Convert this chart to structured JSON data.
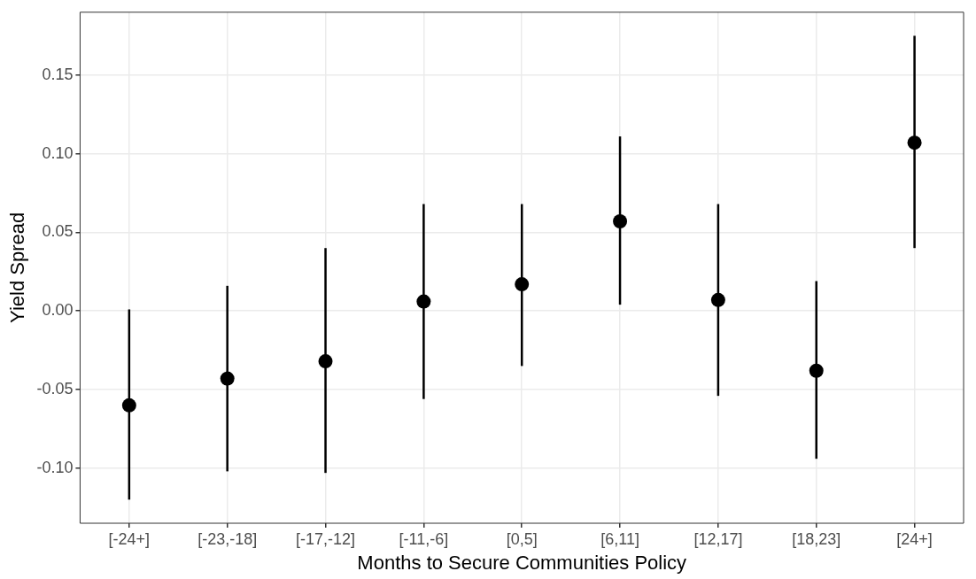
{
  "chart_data": {
    "type": "scatter",
    "xlabel": "Months to Secure Communities Policy",
    "ylabel": "Yield Spread",
    "categories": [
      "[-24+]",
      "[-23,-18]",
      "[-17,-12]",
      "[-11,-6]",
      "[0,5]",
      "[6,11]",
      "[12,17]",
      "[18,23]",
      "[24+]"
    ],
    "series": [
      {
        "color": "#000000",
        "values": [
          -0.06,
          -0.043,
          -0.032,
          0.006,
          0.017,
          0.057,
          0.007,
          -0.038,
          0.107
        ],
        "errors": [
          [
            -0.12,
            0.001
          ],
          [
            -0.102,
            0.016
          ],
          [
            -0.103,
            0.04
          ],
          [
            -0.056,
            0.068
          ],
          [
            -0.035,
            0.068
          ],
          [
            0.004,
            0.111
          ],
          [
            -0.054,
            0.068
          ],
          [
            -0.094,
            0.019
          ],
          [
            0.04,
            0.175
          ]
        ]
      }
    ],
    "ylim": [
      -0.135,
      0.19
    ],
    "yticks": [
      {
        "value": -0.1,
        "label": "-0.10"
      },
      {
        "value": -0.05,
        "label": "-0.05"
      },
      {
        "value": 0,
        "label": "0.00"
      },
      {
        "value": 0.05,
        "label": "0.05"
      },
      {
        "value": 0.1,
        "label": "0.10"
      },
      {
        "value": 0.15,
        "label": "0.15"
      }
    ],
    "grid": true,
    "legend": false,
    "marker": "circle"
  }
}
